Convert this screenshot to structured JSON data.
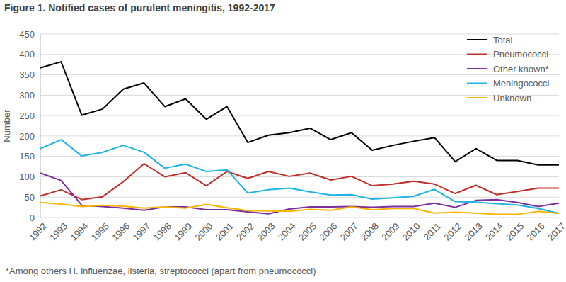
{
  "chart_data": {
    "type": "line",
    "title": "Figure 1. Notified cases of purulent meningitis, 1992-2017",
    "y_label": "Number",
    "annotations": [
      "*Among others H. influenzae, listeria, streptococci (apart from pneumococci)"
    ],
    "categories": [
      "1992",
      "1993",
      "1994",
      "1995",
      "1996",
      "1997",
      "1998",
      "1999",
      "2000",
      "2001",
      "2002",
      "2003",
      "2004",
      "2005",
      "2006",
      "2007",
      "2008",
      "2009",
      "2010",
      "2011",
      "2012",
      "2013",
      "2014",
      "2015",
      "2016",
      "2017"
    ],
    "series": [
      {
        "name": "Total",
        "color": "#000000",
        "values": [
          367,
          382,
          251,
          266,
          315,
          330,
          272,
          291,
          241,
          272,
          184,
          202,
          208,
          219,
          191,
          208,
          165,
          177,
          187,
          196,
          137,
          169,
          140,
          140,
          129,
          129
        ]
      },
      {
        "name": "Pneumococci",
        "color": "#c0302b",
        "values": [
          53,
          68,
          44,
          51,
          88,
          132,
          100,
          110,
          78,
          113,
          96,
          113,
          101,
          109,
          92,
          101,
          78,
          82,
          89,
          82,
          59,
          79,
          56,
          64,
          72,
          72
        ]
      },
      {
        "name": "Other known*",
        "color": "#7b2f9e",
        "values": [
          109,
          91,
          30,
          27,
          23,
          18,
          26,
          26,
          19,
          19,
          14,
          9,
          21,
          26,
          26,
          27,
          25,
          27,
          27,
          35,
          25,
          42,
          44,
          37,
          27,
          35
        ]
      },
      {
        "name": "Meningococci",
        "color": "#1fb3e3",
        "values": [
          169,
          191,
          151,
          160,
          177,
          160,
          121,
          131,
          113,
          117,
          60,
          68,
          72,
          63,
          55,
          56,
          45,
          48,
          52,
          69,
          39,
          38,
          34,
          31,
          22,
          10
        ]
      },
      {
        "name": "Unknown",
        "color": "#f7b500",
        "values": [
          37,
          33,
          27,
          30,
          28,
          23,
          26,
          23,
          32,
          24,
          17,
          16,
          15,
          20,
          18,
          26,
          19,
          22,
          22,
          11,
          13,
          11,
          8,
          8,
          15,
          10
        ]
      }
    ],
    "ylim": [
      0,
      450
    ],
    "yticks": [
      0,
      50,
      100,
      150,
      200,
      250,
      300,
      350,
      400,
      450
    ],
    "grid": true,
    "legend": "upper right"
  }
}
